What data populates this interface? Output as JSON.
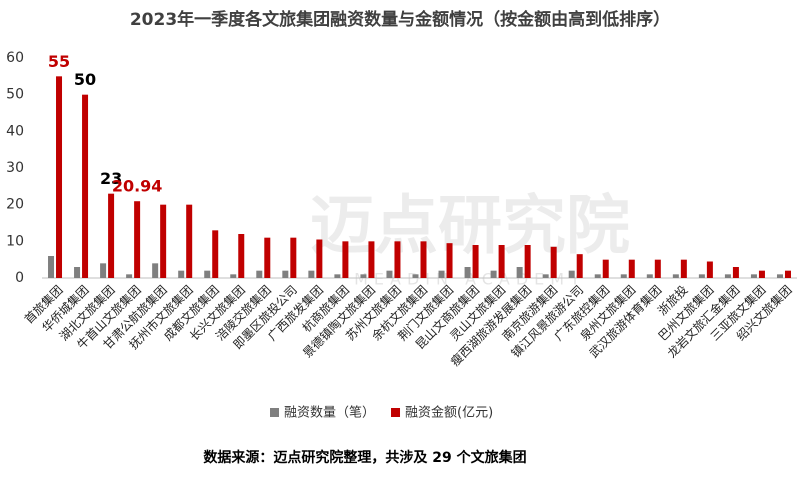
{
  "chart_data": {
    "type": "bar",
    "title": "2023年一季度各文旅集团融资数量与金额情况（按金额由高到低排序）",
    "categories": [
      "首旅集团",
      "华侨城集团",
      "湖北文旅集团",
      "牛首山文旅集团",
      "甘肃公航旅集团",
      "抚州市文旅集团",
      "成都文旅集团",
      "长兴文旅集团",
      "涪陵交旅集团",
      "即墨区旅投公司",
      "广西旅发集团",
      "杭商旅集团",
      "景德镇陶文旅集团",
      "苏州文旅集团",
      "余杭文旅集团",
      "荆门文旅集团",
      "昆山文商旅集团",
      "灵山文旅集团",
      "瘦西湖旅游发展集团",
      "南京旅游集团",
      "镇江风景旅游公司",
      "广东旅控集团",
      "泉州文旅集团",
      "武汉旅游体育集团",
      "浙旅投",
      "巴州文旅集团",
      "龙岩文旅汇金集团",
      "三亚旅文集团",
      "绍兴文旅集团"
    ],
    "series": [
      {
        "name": "融资数量（笔）",
        "color": "#7f7f7f",
        "values": [
          6,
          3,
          4,
          1,
          4,
          2,
          2,
          1,
          2,
          2,
          2,
          1,
          1,
          2,
          1,
          2,
          3,
          2,
          3,
          1,
          2,
          1,
          1,
          1,
          1,
          1,
          1,
          1,
          1
        ]
      },
      {
        "name": "融资金额(亿元)",
        "color": "#c00000",
        "values": [
          55,
          50,
          23,
          20.94,
          20,
          20,
          13,
          12,
          11,
          11,
          10.5,
          10,
          10,
          10,
          10,
          9.5,
          9,
          9,
          9,
          8.5,
          6.5,
          5,
          5,
          5,
          5,
          4.5,
          3,
          2,
          2
        ],
        "value_label_colors": [
          "#c00000",
          "#000000",
          "#000000",
          "#c00000"
        ]
      }
    ],
    "ylim": [
      0,
      60
    ],
    "yticks": [
      0,
      10,
      20,
      30,
      40,
      50,
      60
    ],
    "legend": "bottom",
    "watermark": {
      "title": "迈点研究院",
      "subtitle": "MEADIN ACADEMY"
    },
    "source": "数据来源：迈点研究院整理，共涉及 29 个文旅集团"
  }
}
